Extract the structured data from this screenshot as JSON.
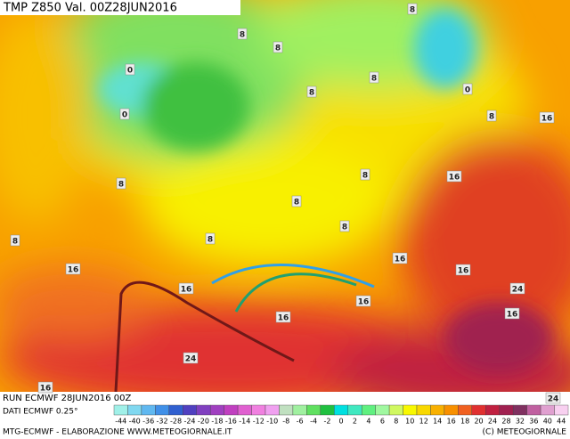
{
  "header": {
    "title": "TMP Z850 Val. 00Z28JUN2016"
  },
  "contour_labels": [
    8,
    8,
    8,
    0,
    0,
    0,
    8,
    8,
    8,
    16,
    8,
    8,
    16,
    8,
    8,
    8,
    8,
    16,
    16,
    16,
    16,
    16,
    24,
    16,
    16,
    24,
    16,
    24
  ],
  "footer": {
    "run": "RUN ECMWF 28JUN2016 00Z",
    "data": "DATI ECMWF 0.25°",
    "credit": "MTG-ECMWF  -  ELABORAZIONE WWW.METEOGIORNALE.IT",
    "copyright": "(C) METEOGIORNALE"
  },
  "scale": {
    "labels": [
      -44,
      -40,
      -36,
      -32,
      -28,
      -24,
      -20,
      -18,
      -16,
      -14,
      -12,
      -10,
      -8,
      -6,
      -4,
      -2,
      0,
      2,
      4,
      6,
      8,
      10,
      12,
      14,
      16,
      18,
      20,
      24,
      28,
      32,
      36,
      40,
      44
    ],
    "colors": [
      "#a0f0e8",
      "#80d8f0",
      "#60b8f0",
      "#4090e8",
      "#3060d0",
      "#5040c0",
      "#8040c0",
      "#a040c0",
      "#c040c0",
      "#e060d0",
      "#f080e0",
      "#f0a0f0",
      "#c0e0c0",
      "#a0f0a0",
      "#60e060",
      "#20c040",
      "#00e0e0",
      "#40e8c0",
      "#60f080",
      "#a0f8a0",
      "#d0f860",
      "#f8f800",
      "#f8d800",
      "#f8b000",
      "#f89000",
      "#f06020",
      "#e03030",
      "#c02040",
      "#a02050",
      "#803060",
      "#c060a0",
      "#e0a0d0",
      "#f8d0f0"
    ]
  }
}
